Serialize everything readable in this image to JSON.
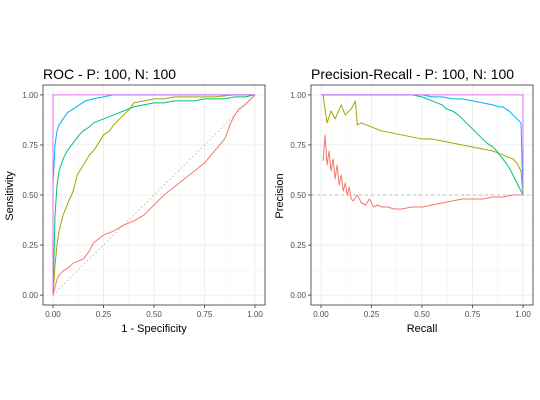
{
  "chart_data": [
    {
      "type": "line",
      "title": "ROC - P: 100, N: 100",
      "xlabel": "1 - Specificity",
      "ylabel": "Sensitivity",
      "xlim": [
        0,
        1
      ],
      "ylim": [
        0,
        1
      ],
      "xticks": [
        "0.00",
        "0.25",
        "0.50",
        "0.75",
        "1.00"
      ],
      "yticks": [
        "0.00",
        "0.25",
        "0.50",
        "0.75",
        "1.00"
      ],
      "grid": true,
      "legend": "none",
      "reference": {
        "type": "diagonal",
        "style": "dotted",
        "color": "#bdbdbd"
      },
      "series": [
        {
          "color": "#f8766d",
          "x": [
            0,
            0.01,
            0.02,
            0.03,
            0.05,
            0.08,
            0.1,
            0.15,
            0.18,
            0.2,
            0.25,
            0.3,
            0.35,
            0.4,
            0.45,
            0.5,
            0.55,
            0.6,
            0.65,
            0.7,
            0.75,
            0.8,
            0.85,
            0.88,
            0.9,
            0.92,
            0.95,
            0.97,
            0.99,
            1.0
          ],
          "y": [
            0,
            0.04,
            0.08,
            0.1,
            0.12,
            0.14,
            0.16,
            0.18,
            0.22,
            0.26,
            0.3,
            0.32,
            0.35,
            0.37,
            0.4,
            0.45,
            0.5,
            0.54,
            0.58,
            0.62,
            0.66,
            0.72,
            0.78,
            0.86,
            0.9,
            0.93,
            0.95,
            0.97,
            0.99,
            1.0
          ]
        },
        {
          "color": "#a3a500",
          "x": [
            0,
            0.01,
            0.02,
            0.03,
            0.05,
            0.07,
            0.1,
            0.12,
            0.15,
            0.18,
            0.2,
            0.22,
            0.25,
            0.28,
            0.3,
            0.33,
            0.35,
            0.38,
            0.4,
            0.45,
            0.5,
            0.55,
            0.6,
            0.7,
            0.8,
            0.9,
            1.0
          ],
          "y": [
            0,
            0.15,
            0.25,
            0.32,
            0.4,
            0.45,
            0.52,
            0.6,
            0.65,
            0.7,
            0.72,
            0.75,
            0.8,
            0.82,
            0.85,
            0.88,
            0.9,
            0.93,
            0.96,
            0.97,
            0.98,
            0.98,
            0.99,
            0.99,
            0.99,
            1.0,
            1.0
          ]
        },
        {
          "color": "#00bf7d",
          "x": [
            0,
            0.01,
            0.02,
            0.03,
            0.05,
            0.07,
            0.1,
            0.13,
            0.15,
            0.18,
            0.2,
            0.25,
            0.3,
            0.35,
            0.4,
            0.45,
            0.5,
            0.55,
            0.6,
            0.65,
            0.7,
            0.75,
            0.8,
            0.85,
            0.9,
            0.95,
            1.0
          ],
          "y": [
            0,
            0.4,
            0.55,
            0.62,
            0.68,
            0.72,
            0.76,
            0.8,
            0.82,
            0.84,
            0.86,
            0.88,
            0.9,
            0.92,
            0.94,
            0.95,
            0.96,
            0.96,
            0.97,
            0.97,
            0.97,
            0.98,
            0.98,
            0.98,
            0.99,
            0.99,
            1.0
          ]
        },
        {
          "color": "#00b0f6",
          "x": [
            0,
            0,
            0.01,
            0.02,
            0.03,
            0.05,
            0.07,
            0.1,
            0.13,
            0.16,
            0.2,
            0.25,
            0.3,
            0.4,
            0.5,
            0.6,
            0.7,
            0.8,
            0.9,
            1.0
          ],
          "y": [
            0,
            0.55,
            0.75,
            0.82,
            0.85,
            0.88,
            0.91,
            0.93,
            0.95,
            0.97,
            0.98,
            0.99,
            1.0,
            1.0,
            1.0,
            1.0,
            1.0,
            1.0,
            1.0,
            1.0
          ]
        },
        {
          "color": "#e76bf3",
          "x": [
            0,
            0,
            1
          ],
          "y": [
            0,
            1,
            1
          ]
        }
      ]
    },
    {
      "type": "line",
      "title": "Precision-Recall - P: 100, N: 100",
      "xlabel": "Recall",
      "ylabel": "Precision",
      "xlim": [
        0,
        1
      ],
      "ylim": [
        0,
        1
      ],
      "xticks": [
        "0.00",
        "0.25",
        "0.50",
        "0.75",
        "1.00"
      ],
      "yticks": [
        "0.00",
        "0.25",
        "0.50",
        "0.75",
        "1.00"
      ],
      "grid": true,
      "legend": "none",
      "reference": {
        "type": "horizontal",
        "y": 0.5,
        "style": "dashed",
        "color": "#bdbdbd"
      },
      "series": [
        {
          "color": "#f8766d",
          "x": [
            0.01,
            0.02,
            0.03,
            0.04,
            0.05,
            0.06,
            0.07,
            0.08,
            0.09,
            0.1,
            0.11,
            0.12,
            0.13,
            0.14,
            0.15,
            0.16,
            0.18,
            0.2,
            0.22,
            0.24,
            0.26,
            0.28,
            0.3,
            0.33,
            0.36,
            0.4,
            0.45,
            0.5,
            0.55,
            0.6,
            0.65,
            0.7,
            0.75,
            0.8,
            0.85,
            0.9,
            0.95,
            1.0
          ],
          "y": [
            0.67,
            0.8,
            0.65,
            0.72,
            0.62,
            0.68,
            0.58,
            0.65,
            0.55,
            0.6,
            0.52,
            0.56,
            0.5,
            0.54,
            0.48,
            0.47,
            0.5,
            0.46,
            0.45,
            0.48,
            0.44,
            0.45,
            0.44,
            0.44,
            0.43,
            0.43,
            0.44,
            0.44,
            0.45,
            0.46,
            0.47,
            0.48,
            0.48,
            0.48,
            0.49,
            0.49,
            0.5,
            0.5
          ]
        },
        {
          "color": "#a3a500",
          "x": [
            0.01,
            0.03,
            0.05,
            0.07,
            0.1,
            0.12,
            0.15,
            0.17,
            0.18,
            0.2,
            0.25,
            0.3,
            0.35,
            0.4,
            0.45,
            0.5,
            0.55,
            0.6,
            0.65,
            0.7,
            0.75,
            0.8,
            0.85,
            0.9,
            0.95,
            0.97,
            0.99,
            1.0
          ],
          "y": [
            1.0,
            0.86,
            0.92,
            0.88,
            0.95,
            0.9,
            0.93,
            0.97,
            0.85,
            0.86,
            0.84,
            0.82,
            0.81,
            0.8,
            0.79,
            0.78,
            0.78,
            0.77,
            0.76,
            0.75,
            0.74,
            0.73,
            0.72,
            0.7,
            0.68,
            0.66,
            0.62,
            0.5
          ]
        },
        {
          "color": "#00bf7d",
          "x": [
            0,
            0.05,
            0.1,
            0.2,
            0.3,
            0.4,
            0.45,
            0.5,
            0.55,
            0.6,
            0.62,
            0.65,
            0.68,
            0.7,
            0.72,
            0.75,
            0.78,
            0.8,
            0.82,
            0.85,
            0.87,
            0.9,
            0.93,
            0.95,
            0.97,
            0.99,
            1.0
          ],
          "y": [
            1.0,
            1.0,
            1.0,
            1.0,
            1.0,
            1.0,
            1.0,
            0.99,
            0.97,
            0.95,
            0.93,
            0.92,
            0.9,
            0.88,
            0.86,
            0.83,
            0.8,
            0.78,
            0.76,
            0.74,
            0.72,
            0.68,
            0.64,
            0.6,
            0.56,
            0.52,
            0.5
          ]
        },
        {
          "color": "#00b0f6",
          "x": [
            0,
            0.1,
            0.2,
            0.3,
            0.4,
            0.5,
            0.55,
            0.6,
            0.65,
            0.7,
            0.75,
            0.8,
            0.85,
            0.88,
            0.9,
            0.93,
            0.95,
            0.97,
            0.99,
            1.0
          ],
          "y": [
            1.0,
            1.0,
            1.0,
            1.0,
            1.0,
            1.0,
            0.99,
            0.99,
            0.98,
            0.98,
            0.97,
            0.96,
            0.95,
            0.94,
            0.94,
            0.92,
            0.9,
            0.88,
            0.86,
            0.5
          ]
        },
        {
          "color": "#e76bf3",
          "x": [
            0,
            1,
            1
          ],
          "y": [
            1,
            1,
            0.5
          ]
        }
      ]
    }
  ]
}
